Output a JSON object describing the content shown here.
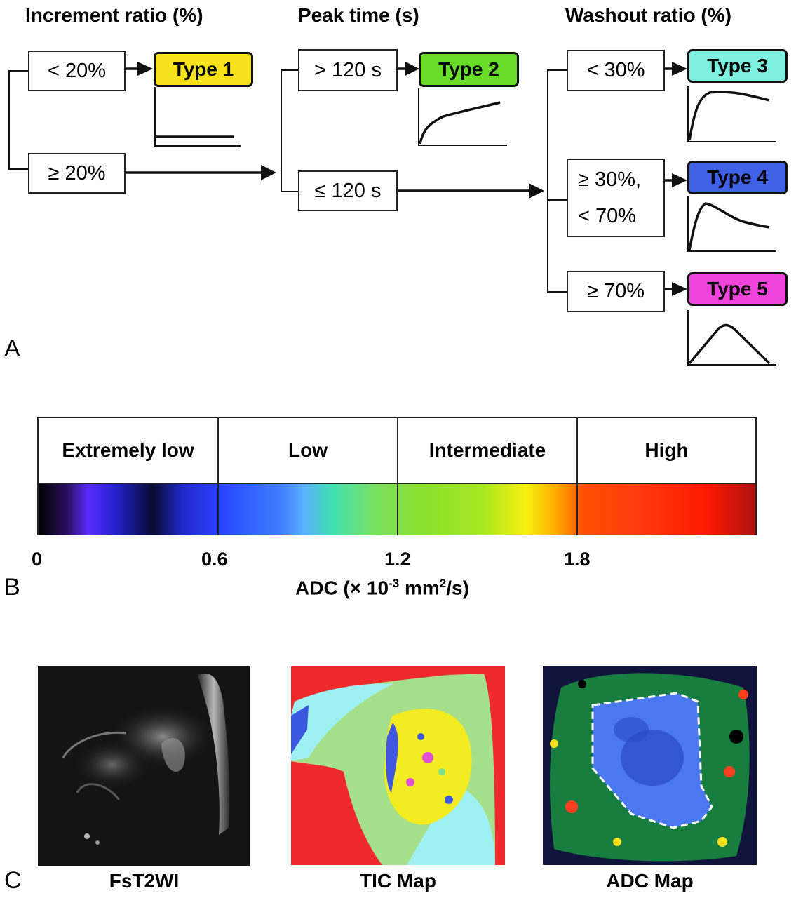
{
  "panel_a": {
    "label": "A",
    "headers": {
      "increment": "Increment ratio (%)",
      "peak": "Peak time (s)",
      "washout": "Washout ratio (%)"
    },
    "conditions": {
      "inc_low": "< 20%",
      "inc_high": "≥ 20%",
      "peak_high": "> 120 s",
      "peak_low": "≤ 120 s",
      "wash_low": "< 30%",
      "wash_mid_1": "≥ 30%,",
      "wash_mid_2": "< 70%",
      "wash_high": "≥ 70%"
    },
    "types": [
      {
        "label": "Type 1",
        "color": "#f5e21b"
      },
      {
        "label": "Type 2",
        "color": "#69dc2a"
      },
      {
        "label": "Type 3",
        "color": "#7ef0e0"
      },
      {
        "label": "Type 4",
        "color": "#4060e6"
      },
      {
        "label": "Type 5",
        "color": "#ee44dc"
      }
    ]
  },
  "panel_b": {
    "label": "B",
    "categories": [
      "Extremely low",
      "Low",
      "Intermediate",
      "High"
    ],
    "ticks": [
      "0",
      "0.6",
      "1.2",
      "1.8"
    ],
    "axis_title": "ADC (× 10",
    "axis_exp": "-3",
    "axis_unit": " mm",
    "axis_unit_exp": "2",
    "axis_tail": "/s)"
  },
  "panel_c": {
    "label": "C",
    "images": [
      {
        "caption": "FsT2WI"
      },
      {
        "caption": "TIC Map"
      },
      {
        "caption": "ADC Map"
      }
    ]
  }
}
